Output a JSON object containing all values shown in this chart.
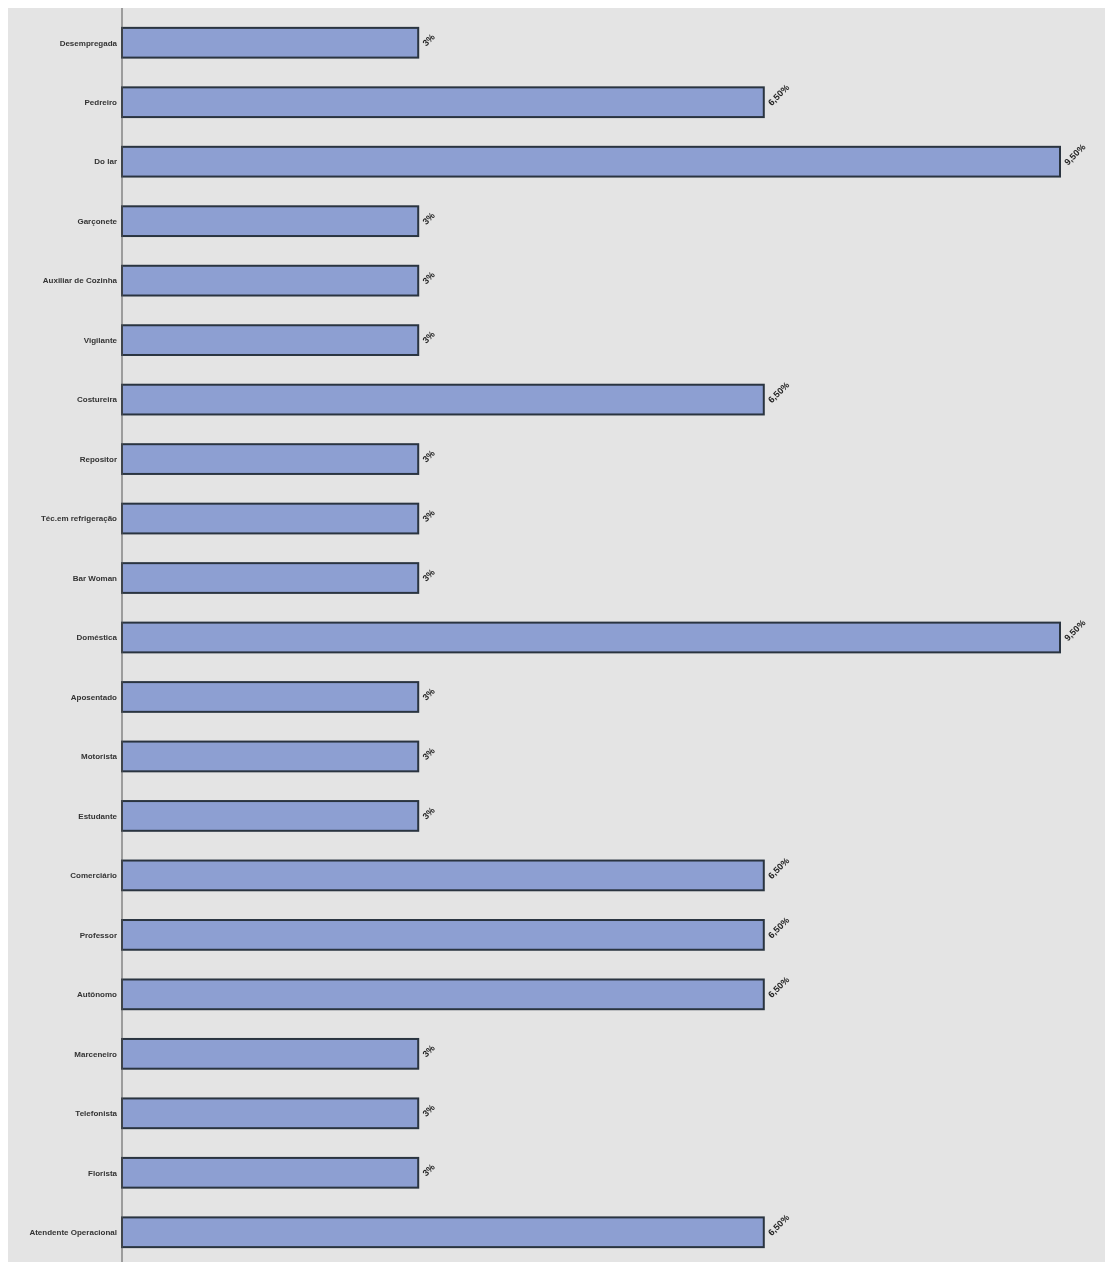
{
  "chart_data": {
    "type": "bar",
    "orientation": "horizontal",
    "categories": [
      "Desempregada",
      "Pedreiro",
      "Do lar",
      "Garçonete",
      "Auxiliar de Cozinha",
      "Vigilante",
      "Costureira",
      "Repositor",
      "Téc.em refrigeração",
      "Bar Woman",
      "Doméstica",
      "Aposentado",
      "Motorista",
      "Estudante",
      "Comerciário",
      "Professor",
      "Autônomo",
      "Marceneiro",
      "Telefonista",
      "Florista",
      "Atendente Operacional"
    ],
    "values": [
      3,
      6.5,
      9.5,
      3,
      3,
      3,
      6.5,
      3,
      3,
      3,
      9.5,
      3,
      3,
      3,
      6.5,
      6.5,
      6.5,
      3,
      3,
      3,
      6.5
    ],
    "value_labels": [
      "3%",
      "6,50%",
      "9,50%",
      "3%",
      "3%",
      "3%",
      "6,50%",
      "3%",
      "3%",
      "3%",
      "9,50%",
      "3%",
      "3%",
      "3%",
      "6,50%",
      "6,50%",
      "6,50%",
      "3%",
      "3%",
      "3%",
      "6,50%"
    ],
    "color": "#8d9fd2"
  }
}
